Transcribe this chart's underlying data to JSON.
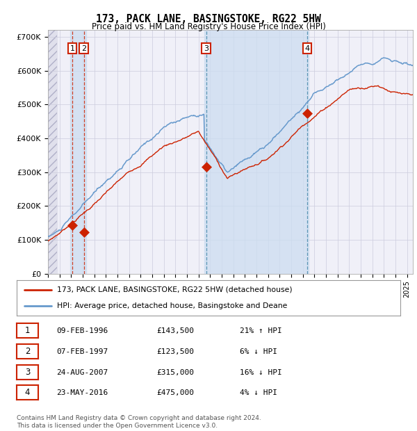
{
  "title": "173, PACK LANE, BASINGSTOKE, RG22 5HW",
  "subtitle": "Price paid vs. HM Land Registry's House Price Index (HPI)",
  "ylim": [
    0,
    720000
  ],
  "yticks": [
    0,
    100000,
    200000,
    300000,
    400000,
    500000,
    600000,
    700000
  ],
  "ytick_labels": [
    "£0",
    "£100K",
    "£200K",
    "£300K",
    "£400K",
    "£500K",
    "£600K",
    "£700K"
  ],
  "xlim_start": 1994.0,
  "xlim_end": 2025.5,
  "hpi_color": "#6699cc",
  "price_color": "#cc2200",
  "bg_color": "#ffffff",
  "chart_bg": "#f0f0f8",
  "grid_color": "#ccccdd",
  "sale_points": [
    {
      "num": 1,
      "year": 1996.1,
      "value": 143500,
      "label": "09-FEB-1996",
      "price_label": "£143,500",
      "hpi_label": "21% ↑ HPI"
    },
    {
      "num": 2,
      "year": 1997.1,
      "value": 123500,
      "label": "07-FEB-1997",
      "price_label": "£123,500",
      "hpi_label": "6% ↓ HPI"
    },
    {
      "num": 3,
      "year": 2007.65,
      "value": 315000,
      "label": "24-AUG-2007",
      "price_label": "£315,000",
      "hpi_label": "16% ↓ HPI"
    },
    {
      "num": 4,
      "year": 2016.38,
      "value": 475000,
      "label": "23-MAY-2016",
      "price_label": "£475,000",
      "hpi_label": "4% ↓ HPI"
    }
  ],
  "legend_price_label": "173, PACK LANE, BASINGSTOKE, RG22 5HW (detached house)",
  "legend_hpi_label": "HPI: Average price, detached house, Basingstoke and Deane",
  "footnote": "Contains HM Land Registry data © Crown copyright and database right 2024.\nThis data is licensed under the Open Government Licence v3.0.",
  "highlight_regions": [
    {
      "start": 1995.9,
      "end": 1997.3
    },
    {
      "start": 2007.5,
      "end": 2016.5
    }
  ]
}
